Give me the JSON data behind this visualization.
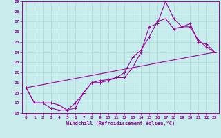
{
  "xlabel": "Windchill (Refroidissement éolien,°C)",
  "background_color": "#c8ecec",
  "grid_color": "#a8d8d8",
  "line_color": "#990099",
  "xlim": [
    -0.5,
    23.5
  ],
  "ylim": [
    18,
    29
  ],
  "xticks": [
    0,
    1,
    2,
    3,
    4,
    5,
    6,
    7,
    8,
    9,
    10,
    11,
    12,
    13,
    14,
    15,
    16,
    17,
    18,
    19,
    20,
    21,
    22,
    23
  ],
  "yticks": [
    18,
    19,
    20,
    21,
    22,
    23,
    24,
    25,
    26,
    27,
    28,
    29
  ],
  "series1": [
    [
      0,
      20.5
    ],
    [
      1,
      19.0
    ],
    [
      2,
      19.0
    ],
    [
      3,
      18.5
    ],
    [
      4,
      18.3
    ],
    [
      5,
      18.3
    ],
    [
      6,
      18.5
    ],
    [
      7,
      20.0
    ],
    [
      8,
      21.0
    ],
    [
      9,
      21.0
    ],
    [
      10,
      21.2
    ],
    [
      11,
      21.5
    ],
    [
      12,
      21.5
    ],
    [
      13,
      22.5
    ],
    [
      14,
      24.0
    ],
    [
      15,
      26.5
    ],
    [
      16,
      26.8
    ],
    [
      17,
      29.0
    ],
    [
      18,
      27.3
    ],
    [
      19,
      26.5
    ],
    [
      20,
      26.8
    ],
    [
      21,
      25.0
    ],
    [
      22,
      24.8
    ],
    [
      23,
      24.0
    ]
  ],
  "series2": [
    [
      0,
      20.5
    ],
    [
      23,
      24.0
    ]
  ],
  "series3": [
    [
      0,
      20.5
    ],
    [
      1,
      19.0
    ],
    [
      2,
      19.0
    ],
    [
      3,
      19.0
    ],
    [
      4,
      18.8
    ],
    [
      5,
      18.3
    ],
    [
      6,
      19.0
    ],
    [
      7,
      20.0
    ],
    [
      8,
      21.0
    ],
    [
      9,
      21.2
    ],
    [
      10,
      21.3
    ],
    [
      11,
      21.5
    ],
    [
      12,
      22.0
    ],
    [
      13,
      23.5
    ],
    [
      14,
      24.2
    ],
    [
      15,
      25.5
    ],
    [
      16,
      27.0
    ],
    [
      17,
      27.3
    ],
    [
      18,
      26.3
    ],
    [
      19,
      26.5
    ],
    [
      20,
      26.5
    ],
    [
      21,
      25.2
    ],
    [
      22,
      24.5
    ],
    [
      23,
      24.0
    ]
  ]
}
